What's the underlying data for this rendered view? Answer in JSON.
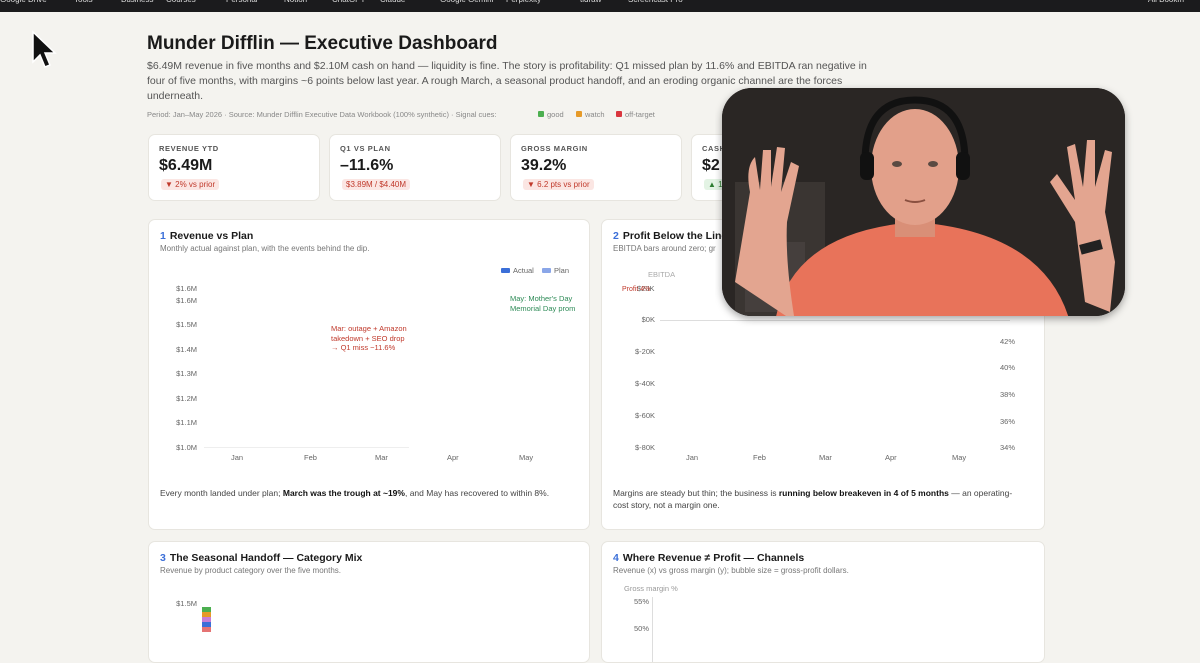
{
  "bookmarks": [
    "Google Drive",
    "Tools",
    "Business",
    "Courses",
    "Personal",
    "Notion",
    "ChatGPT",
    "Claude",
    "Google Gemini",
    "Perplexity",
    "tldraw",
    "Screencast Pro",
    "All Bookm"
  ],
  "header": {
    "title": "Munder Difflin — Executive Dashboard",
    "subtitle": [
      "$6.49M revenue in five months and $2.10M cash on hand — liquidity is fine. The story is profitability: Q1 missed plan by 11.6% and EBITDA ran negative in",
      "four of five months, with margins ~6 points below last year. A rough March, a seasonal product handoff, and an eroding organic channel are the forces",
      "underneath."
    ],
    "meta": "Period: Jan–May 2026 · Source: Munder Difflin Executive Data Workbook (100% synthetic) · Signal cues:",
    "cues": [
      "good",
      "watch",
      "off-target"
    ]
  },
  "kpis": [
    {
      "label": "REVENUE YTD",
      "value": "$6.49M",
      "delta": "▼ 2% vs prior"
    },
    {
      "label": "Q1 VS PLAN",
      "value": "–11.6%",
      "delta": "$3.89M / $4.40M"
    },
    {
      "label": "GROSS MARGIN",
      "value": "39.2%",
      "delta": "▼ 6.2 pts vs prior"
    },
    {
      "label": "CASH",
      "value": "$2",
      "delta": "▲ 1"
    }
  ],
  "panels": [
    {
      "number": "1",
      "title": "Revenue vs Plan",
      "subtitle": "Monthly actual against plan, with the events behind the dip.",
      "legend": [
        "Actual",
        "Plan"
      ],
      "yticks": [
        "$1.6M",
        "$1.6M",
        "$1.5M",
        "$1.4M",
        "$1.3M",
        "$1.2M",
        "$1.1M",
        "$1.0M"
      ],
      "xticks": [
        "Jan",
        "Feb",
        "Mar",
        "Apr",
        "May"
      ],
      "annotation_red": [
        "Mar: outage + Amazon",
        "takedown + SEO drop",
        "→ Q1 miss −11.6%"
      ],
      "annotation_green": [
        "May: Mother's Day",
        "Memorial Day prom"
      ],
      "footer": [
        "Every month landed under plan; ",
        "March was the trough at ~19%",
        ", and May has recovered to within 8%."
      ]
    },
    {
      "number": "2",
      "title": "Profit Below the Line",
      "subtitle": "EBITDA bars around zero; gr",
      "series_label": "EBITDA",
      "top_tick": "$20K",
      "annotation_red": "Profit 4%",
      "yticks": [
        "$0K",
        "$-20K",
        "$-40K",
        "$-60K",
        "$-80K"
      ],
      "y2ticks": [
        "42%",
        "40%",
        "38%",
        "36%",
        "34%"
      ],
      "xticks": [
        "Jan",
        "Feb",
        "Mar",
        "Apr",
        "May"
      ],
      "footer": [
        "Margins are steady but thin; the business is ",
        "running below breakeven in 4 of 5 months",
        " — an operating-",
        "cost story, not a margin one."
      ]
    },
    {
      "number": "3",
      "title": "The Seasonal Handoff — Category Mix",
      "subtitle": "Revenue by product category over the five months.",
      "yticks": [
        "$1.5M"
      ]
    },
    {
      "number": "4",
      "title": "Where Revenue ≠ Profit — Channels",
      "subtitle": "Revenue (x) vs gross margin (y); bubble size = gross-profit dollars.",
      "axis_title": "Gross margin %",
      "yticks": [
        "55%",
        "50%"
      ]
    }
  ]
}
